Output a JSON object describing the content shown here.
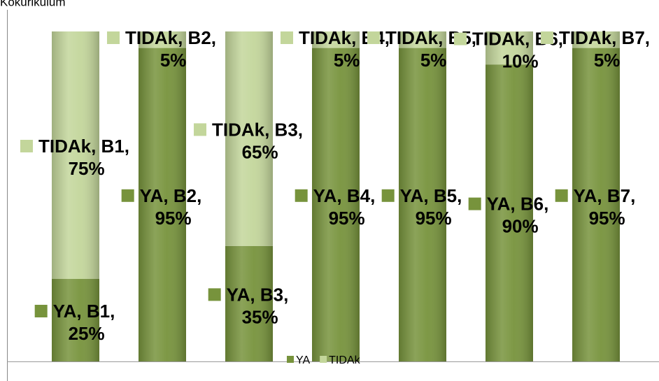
{
  "chart_data": {
    "type": "bar",
    "stacked": true,
    "title": "Kokurikulum",
    "series": [
      {
        "name": "YA",
        "color": "#77933c",
        "values": [
          25,
          95,
          35,
          95,
          95,
          90,
          95
        ],
        "value_labels": [
          "YA, B1, 25%",
          "YA, B2, 95%",
          "YA, B3, 35%",
          "YA, B4, 95%",
          "YA, B5, 95%",
          "YA, B6, 90%",
          "YA, B7, 95%"
        ]
      },
      {
        "name": "TIDAk",
        "color": "#c3d69b",
        "values": [
          75,
          5,
          65,
          5,
          5,
          10,
          5
        ],
        "value_labels": [
          "TIDAk, B1, 75%",
          "TIDAk, B2, 5%",
          "TIDAk, B3, 65%",
          "TIDAk, B4, 5%",
          "TIDAk, B5, 5%",
          "TIDAk, B6, 10%",
          "TIDAk, B7, 5%"
        ]
      }
    ],
    "ylim": [
      0,
      100
    ],
    "legend": "bottom"
  }
}
